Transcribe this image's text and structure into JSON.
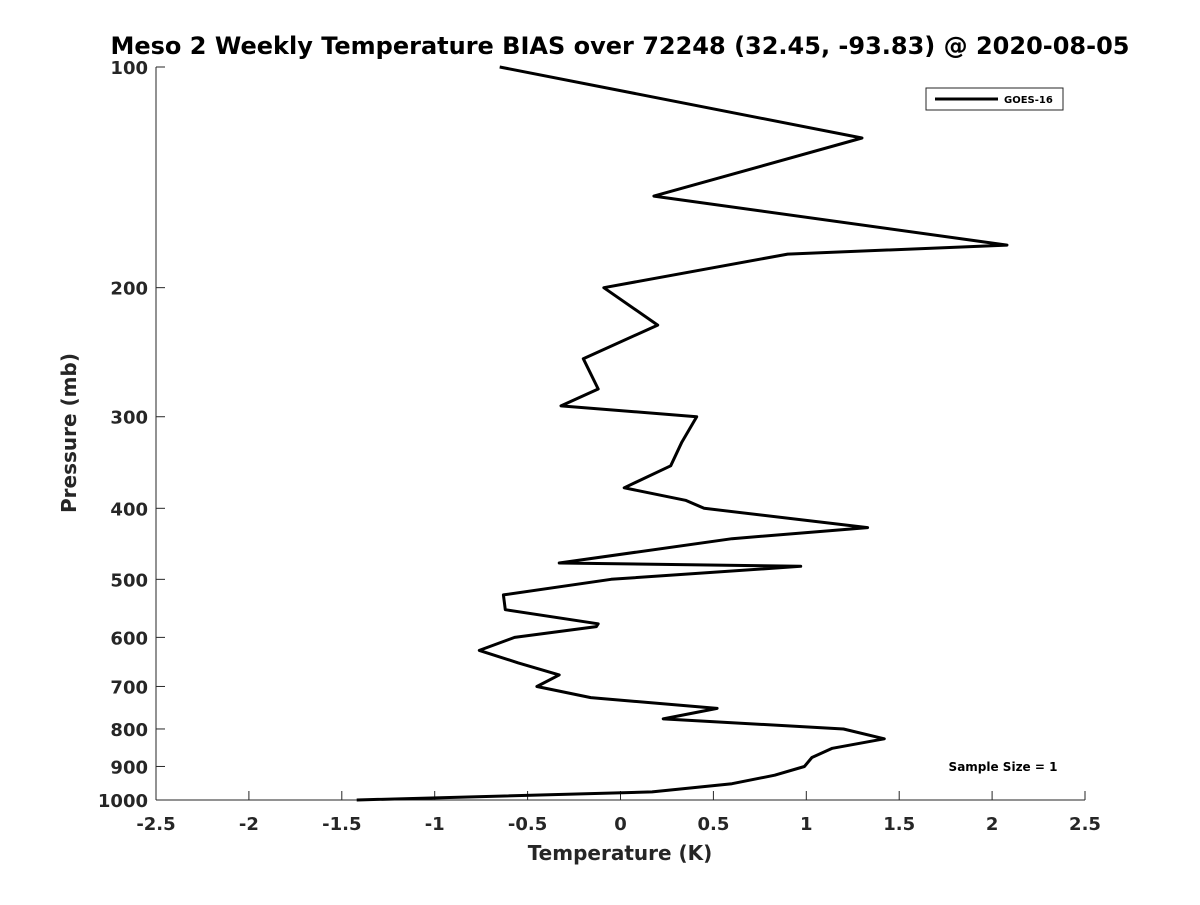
{
  "chart_data": {
    "type": "line",
    "title": "Meso 2 Weekly Temperature BIAS over 72248 (32.45, -93.83) @ 2020-08-05",
    "xlabel": "Temperature (K)",
    "ylabel": "Pressure (mb)",
    "xlim": [
      -2.5,
      2.5
    ],
    "ylim": [
      100,
      1000
    ],
    "y_scale": "log",
    "y_reversed": true,
    "xticks": [
      -2.5,
      -2,
      -1.5,
      -1,
      -0.5,
      0,
      0.5,
      1,
      1.5,
      2,
      2.5
    ],
    "xtick_labels": [
      "-2.5",
      "-2",
      "-1.5",
      "-1",
      "-0.5",
      "0",
      "0.5",
      "1",
      "1.5",
      "2",
      "2.5"
    ],
    "yticks": [
      100,
      200,
      300,
      400,
      500,
      600,
      700,
      800,
      900,
      1000
    ],
    "ytick_labels": [
      "100",
      "200",
      "300",
      "400",
      "500",
      "600",
      "700",
      "800",
      "900",
      "1000"
    ],
    "grid": false,
    "legend_position": "top-right",
    "annotation": "Sample Size = 1",
    "series": [
      {
        "name": "GOES-16",
        "color": "#000000",
        "points": [
          [
            -0.65,
            100
          ],
          [
            1.3,
            125
          ],
          [
            0.18,
            150
          ],
          [
            2.08,
            175
          ],
          [
            0.9,
            180
          ],
          [
            -0.09,
            200
          ],
          [
            0.2,
            225
          ],
          [
            -0.2,
            250
          ],
          [
            -0.12,
            275
          ],
          [
            -0.32,
            290
          ],
          [
            0.41,
            300
          ],
          [
            0.33,
            325
          ],
          [
            0.27,
            350
          ],
          [
            0.02,
            375
          ],
          [
            0.35,
            390
          ],
          [
            0.45,
            400
          ],
          [
            1.33,
            425
          ],
          [
            0.6,
            440
          ],
          [
            -0.33,
            475
          ],
          [
            0.97,
            480
          ],
          [
            -0.05,
            500
          ],
          [
            -0.63,
            525
          ],
          [
            -0.62,
            550
          ],
          [
            -0.12,
            575
          ],
          [
            -0.13,
            580
          ],
          [
            -0.57,
            600
          ],
          [
            -0.76,
            625
          ],
          [
            -0.55,
            650
          ],
          [
            -0.33,
            675
          ],
          [
            -0.45,
            700
          ],
          [
            -0.16,
            725
          ],
          [
            0.52,
            750
          ],
          [
            0.23,
            775
          ],
          [
            1.2,
            800
          ],
          [
            1.42,
            825
          ],
          [
            1.14,
            850
          ],
          [
            1.03,
            875
          ],
          [
            0.99,
            900
          ],
          [
            0.83,
            925
          ],
          [
            0.6,
            950
          ],
          [
            0.17,
            975
          ],
          [
            -1.42,
            1000
          ]
        ]
      }
    ]
  }
}
